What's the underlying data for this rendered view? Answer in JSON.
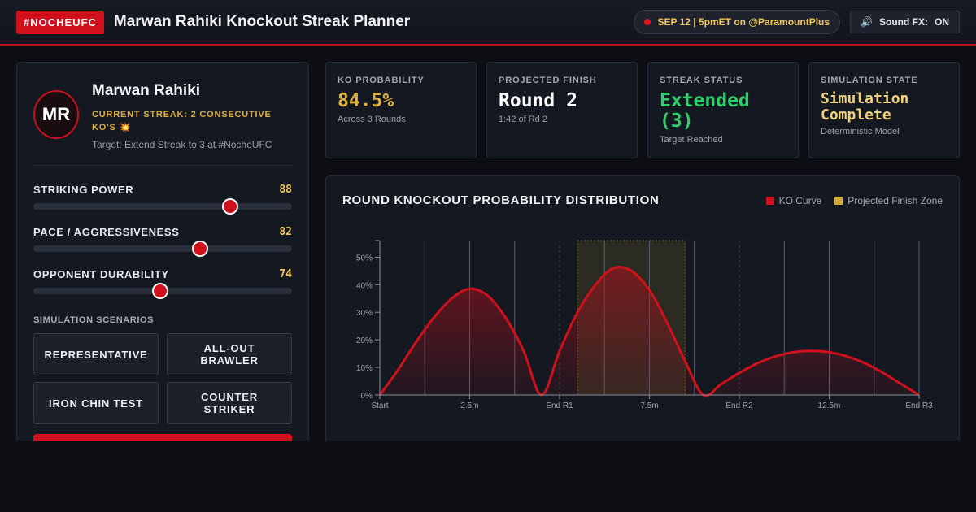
{
  "header": {
    "tag": "#NOCHEUFC",
    "title": "Marwan Rahiki Knockout Streak Planner",
    "event": "SEP 12 | 5pmET on @ParamountPlus",
    "sound_label": "Sound FX:",
    "sound_state": "ON",
    "speaker_icon": "speaker-icon"
  },
  "fighter": {
    "initials": "MR",
    "name": "Marwan Rahiki",
    "streak": "CURRENT STREAK: 2 CONSECUTIVE KO'S 💥",
    "target": "Target: Extend Streak to 3 at #NocheUFC"
  },
  "sliders": [
    {
      "label": "STRIKING POWER",
      "value": 88,
      "fill": 0.76
    },
    {
      "label": "PACE / AGGRESSIVENESS",
      "value": 82,
      "fill": 0.645
    },
    {
      "label": "OPPONENT DURABILITY",
      "value": 74,
      "fill": 0.49
    }
  ],
  "scenarios": {
    "label": "SIMULATION SCENARIOS",
    "buttons": [
      "REPRESENTATIVE",
      "ALL-OUT BRAWLER",
      "IRON CHIN TEST",
      "COUNTER STRIKER"
    ]
  },
  "stats": [
    {
      "label": "KO PROBABILITY",
      "value": "84.5%",
      "sub": "Across 3 Rounds",
      "color": "#e0b33c"
    },
    {
      "label": "PROJECTED FINISH",
      "value": "Round 2",
      "sub": "1:42 of Rd 2",
      "color": "#ffffff"
    },
    {
      "label": "STREAK STATUS",
      "value": "Extended (3)",
      "sub": "Target Reached",
      "color": "#2fd06b"
    },
    {
      "label": "SIMULATION STATE",
      "value": "Simulation Complete",
      "sub": "Deterministic Model",
      "color": "#f1d27a"
    }
  ],
  "chart": {
    "title": "ROUND KNOCKOUT PROBABILITY DISTRIBUTION",
    "legend": [
      {
        "name": "KO Curve",
        "color": "#d0111b"
      },
      {
        "name": "Projected Finish Zone",
        "color": "#d4ab35"
      }
    ]
  },
  "chart_data": {
    "type": "area",
    "series": [
      {
        "name": "KO Curve",
        "x": [
          0,
          0.5,
          1,
          1.5,
          2,
          2.5,
          3,
          3.5,
          4,
          4.5,
          5,
          5.5,
          6,
          6.5,
          7,
          7.5,
          8,
          8.5,
          9,
          9.5,
          10,
          10.5,
          11,
          11.5,
          12,
          12.5,
          13,
          13.5,
          14,
          14.5,
          15
        ],
        "y": [
          0,
          9,
          19,
          28,
          35,
          38.5,
          36,
          28,
          16,
          0,
          16,
          30,
          40,
          46,
          45,
          38,
          26,
          12,
          0,
          4,
          8,
          11.5,
          14,
          15.5,
          16,
          15.5,
          14,
          11.5,
          8,
          4,
          0
        ]
      }
    ],
    "finish_zone": [
      5.5,
      8.5
    ],
    "x_ticks": [
      {
        "x": 0,
        "label": "Start"
      },
      {
        "x": 2.5,
        "label": "2.5m"
      },
      {
        "x": 5,
        "label": "End R1"
      },
      {
        "x": 7.5,
        "label": "7.5m"
      },
      {
        "x": 10,
        "label": "End R2"
      },
      {
        "x": 12.5,
        "label": "12.5m"
      },
      {
        "x": 15,
        "label": "End R3"
      }
    ],
    "y_ticks": [
      {
        "y": 0,
        "label": "0%"
      },
      {
        "y": 10,
        "label": "10%"
      },
      {
        "y": 20,
        "label": "20%"
      },
      {
        "y": 30,
        "label": "30%"
      },
      {
        "y": 40,
        "label": "40%"
      },
      {
        "y": 50,
        "label": "50%"
      }
    ],
    "xlim": [
      0,
      15
    ],
    "ylim": [
      0,
      56
    ],
    "grid": true,
    "legend": "top-right"
  }
}
